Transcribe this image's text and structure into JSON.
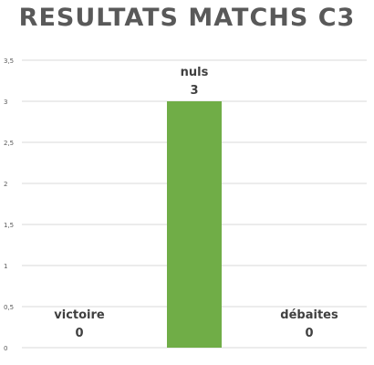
{
  "chart_data": {
    "type": "bar",
    "title": "RESULTATS MATCHS C3",
    "categories": [
      "victoire",
      "nuls",
      "débaites"
    ],
    "values": [
      0,
      3,
      0
    ],
    "value_labels": [
      "0",
      "3",
      "0"
    ],
    "y_ticks": [
      "0",
      "0,5",
      "1",
      "1,5",
      "2",
      "2,5",
      "3",
      "3,5"
    ],
    "ylim": [
      0,
      3.5
    ],
    "grid": true,
    "legend": "none",
    "bar_color": "#70ad47",
    "gridline_color": "#d9d9d9"
  }
}
